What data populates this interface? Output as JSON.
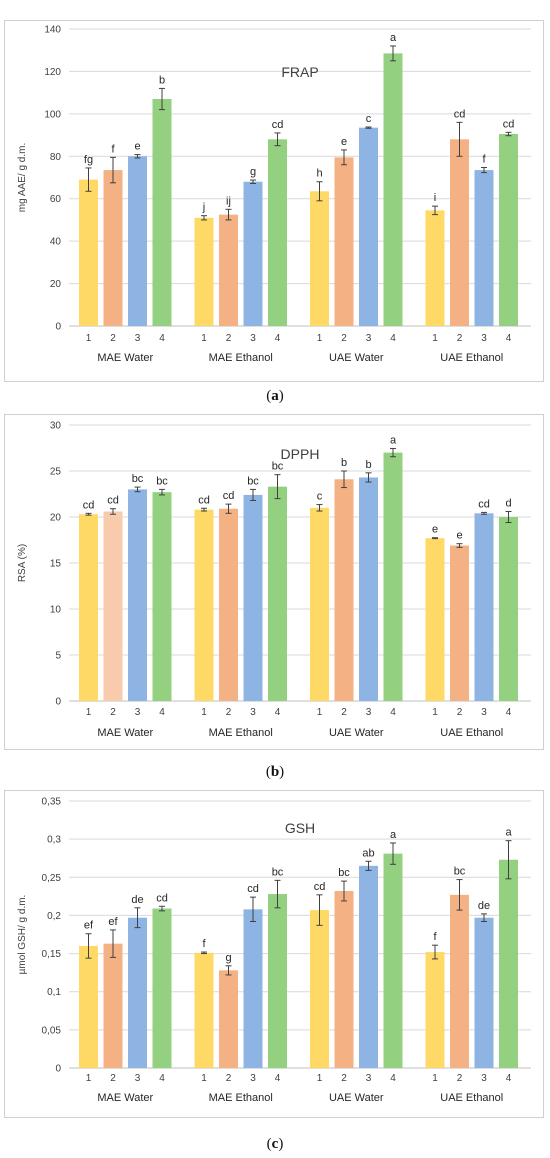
{
  "colors": {
    "bar1": "#FFD966",
    "bar2": "#F4B183",
    "bar2_light": "#F8CBAD",
    "bar3": "#8EB4E3",
    "bar4": "#93D07F",
    "axis_text": "#404040",
    "grid": "#d9d9d9",
    "error": "#404040"
  },
  "chart_data": [
    {
      "type": "bar",
      "title": "FRAP",
      "ylabel": "mg AAE/ g d.m.",
      "ylim": [
        0,
        140
      ],
      "yticks": [
        "0",
        "20",
        "40",
        "60",
        "80",
        "100",
        "120",
        "140"
      ],
      "ytick_values": [
        0,
        20,
        40,
        60,
        80,
        100,
        120,
        140
      ],
      "caption": "a",
      "groups": [
        {
          "name": "MAE Water",
          "categories": [
            "1",
            "2",
            "3",
            "4"
          ],
          "values": [
            69,
            73.5,
            80,
            107
          ],
          "errors": [
            5.5,
            6,
            0.8,
            5
          ],
          "letters": [
            "fg",
            "f",
            "e",
            "b"
          ]
        },
        {
          "name": "MAE Ethanol",
          "categories": [
            "1",
            "2",
            "3",
            "4"
          ],
          "values": [
            51,
            52.5,
            68,
            88
          ],
          "errors": [
            1,
            2.5,
            0.8,
            3
          ],
          "letters": [
            "j",
            "ij",
            "g",
            "cd"
          ]
        },
        {
          "name": "UAE Water",
          "categories": [
            "1",
            "2",
            "3",
            "4"
          ],
          "values": [
            63.5,
            79.5,
            93.5,
            128.5
          ],
          "errors": [
            4.5,
            3.5,
            0.3,
            3.5
          ],
          "letters": [
            "h",
            "e",
            "c",
            "a"
          ]
        },
        {
          "name": "UAE Ethanol",
          "categories": [
            "1",
            "2",
            "3",
            "4"
          ],
          "values": [
            54.5,
            88,
            73.5,
            90.5
          ],
          "errors": [
            2,
            8,
            1.2,
            0.8
          ],
          "letters": [
            "i",
            "cd",
            "f",
            "cd"
          ]
        }
      ]
    },
    {
      "type": "bar",
      "title": "DPPH",
      "ylabel": "RSA (%)",
      "ylim": [
        0,
        30
      ],
      "yticks": [
        "0",
        "5",
        "10",
        "15",
        "20",
        "25",
        "30"
      ],
      "ytick_values": [
        0,
        5,
        10,
        15,
        20,
        25,
        30
      ],
      "caption": "b",
      "groups": [
        {
          "name": "MAE Water",
          "categories": [
            "1",
            "2",
            "3",
            "4"
          ],
          "values": [
            20.3,
            20.6,
            23.0,
            22.7
          ],
          "errors": [
            0.1,
            0.3,
            0.25,
            0.3
          ],
          "letters": [
            "cd",
            "cd",
            "bc",
            "bc"
          ]
        },
        {
          "name": "MAE Ethanol",
          "categories": [
            "1",
            "2",
            "3",
            "4"
          ],
          "values": [
            20.8,
            20.9,
            22.4,
            23.3
          ],
          "errors": [
            0.15,
            0.5,
            0.6,
            1.3
          ],
          "letters": [
            "cd",
            "cd",
            "bc",
            "bc"
          ]
        },
        {
          "name": "UAE Water",
          "categories": [
            "1",
            "2",
            "3",
            "4"
          ],
          "values": [
            21.0,
            24.1,
            24.3,
            27.0
          ],
          "errors": [
            0.35,
            0.9,
            0.5,
            0.45
          ],
          "letters": [
            "c",
            "b",
            "b",
            "a"
          ]
        },
        {
          "name": "UAE Ethanol",
          "categories": [
            "1",
            "2",
            "3",
            "4"
          ],
          "values": [
            17.7,
            16.9,
            20.4,
            20.0
          ],
          "errors": [
            0.05,
            0.2,
            0.1,
            0.6
          ],
          "letters": [
            "e",
            "e",
            "cd",
            "d"
          ]
        }
      ]
    },
    {
      "type": "bar",
      "title": "GSH",
      "ylabel": "µmol GSH/ g d.m.",
      "ylim": [
        0,
        0.35
      ],
      "yticks": [
        "0",
        "0,05",
        "0,1",
        "0,15",
        "0,2",
        "0,25",
        "0,3",
        "0,35"
      ],
      "ytick_values": [
        0,
        0.05,
        0.1,
        0.15,
        0.2,
        0.25,
        0.3,
        0.35
      ],
      "caption": "c",
      "groups": [
        {
          "name": "MAE Water",
          "categories": [
            "1",
            "2",
            "3",
            "4"
          ],
          "values": [
            0.16,
            0.163,
            0.197,
            0.209
          ],
          "errors": [
            0.016,
            0.018,
            0.013,
            0.003
          ],
          "letters": [
            "ef",
            "ef",
            "de",
            "cd"
          ]
        },
        {
          "name": "MAE Ethanol",
          "categories": [
            "1",
            "2",
            "3",
            "4"
          ],
          "values": [
            0.151,
            0.128,
            0.208,
            0.228
          ],
          "errors": [
            0.001,
            0.006,
            0.016,
            0.018
          ],
          "letters": [
            "f",
            "g",
            "cd",
            "bc"
          ]
        },
        {
          "name": "UAE Water",
          "categories": [
            "1",
            "2",
            "3",
            "4"
          ],
          "values": [
            0.207,
            0.232,
            0.265,
            0.281
          ],
          "errors": [
            0.02,
            0.013,
            0.006,
            0.014
          ],
          "letters": [
            "cd",
            "bc",
            "ab",
            "a"
          ]
        },
        {
          "name": "UAE Ethanol",
          "categories": [
            "1",
            "2",
            "3",
            "4"
          ],
          "values": [
            0.152,
            0.227,
            0.197,
            0.273
          ],
          "errors": [
            0.009,
            0.02,
            0.005,
            0.025
          ],
          "letters": [
            "f",
            "bc",
            "de",
            "a"
          ]
        }
      ]
    }
  ]
}
